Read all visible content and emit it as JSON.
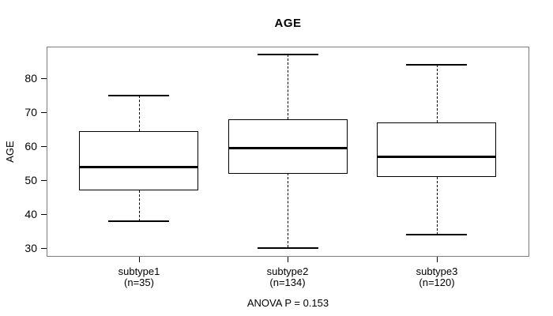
{
  "chart_data": {
    "type": "boxplot",
    "title": "AGE",
    "ylabel": "AGE",
    "xlabel": "",
    "annotation": "ANOVA P = 0.153",
    "grid": false,
    "ylim": [
      27.4,
      89.4
    ],
    "yticks": [
      30,
      40,
      50,
      60,
      70,
      80
    ],
    "categories": [
      "subtype1",
      "subtype2",
      "subtype3"
    ],
    "groups": [
      {
        "label": "subtype1",
        "sublabel": "(n=35)",
        "n": 35,
        "whisker_low": 38,
        "q1": 47,
        "median": 54,
        "q3": 64.5,
        "whisker_high": 75
      },
      {
        "label": "subtype2",
        "sublabel": "(n=134)",
        "n": 134,
        "whisker_low": 30,
        "q1": 52,
        "median": 59.5,
        "q3": 68,
        "whisker_high": 87
      },
      {
        "label": "subtype3",
        "sublabel": "(n=120)",
        "n": 120,
        "whisker_low": 34,
        "q1": 51,
        "median": 57,
        "q3": 67,
        "whisker_high": 84
      }
    ],
    "colors": {
      "line": "#000000",
      "frame": "#7e7e7e",
      "background": "#ffffff",
      "text": "#000000"
    }
  }
}
